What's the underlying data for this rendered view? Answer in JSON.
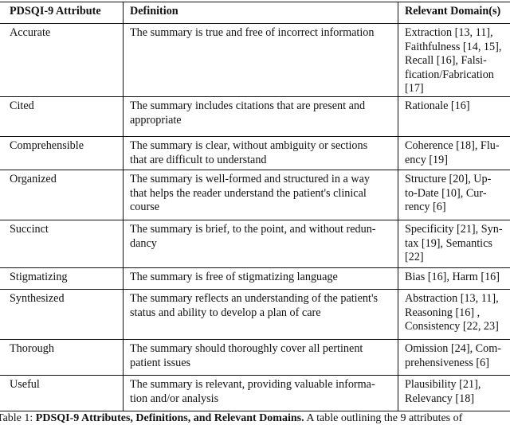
{
  "table": {
    "headers": [
      "PDSQI-9 Attribute",
      "Definition",
      "Relevant Domain(s)"
    ],
    "rows": [
      {
        "attribute": "Accurate",
        "definition": "The summary is true and free of incorrect information",
        "domains": "Extraction   [13, 11],\nFaithfulness [14, 15],\nRecall    [16],   Falsi-\nfication/Fabrication\n[17]"
      },
      {
        "attribute": "Cited",
        "definition": "The summary includes citations that are present and\nappropriate",
        "domains": "Rationale  [16]"
      },
      {
        "attribute": "Comprehensible",
        "definition": "The summary is clear, without ambiguity or sections\nthat are difficult to understand",
        "domains": "Coherence  [18], Flu-\nency  [19]"
      },
      {
        "attribute": "Organized",
        "definition": "The summary is well-formed and structured in a way\nthat helps the reader understand the patient's clinical\ncourse",
        "domains": "Structure    [20],  Up-\nto-Date    [10],   Cur-\nrency  [6]"
      },
      {
        "attribute": "Succinct",
        "definition": "The summary is brief, to the point, and without redun-\ndancy",
        "domains": "Specificity [21], Syn-\ntax  [19], Semantics\n[22]"
      },
      {
        "attribute": "Stigmatizing",
        "definition": "The summary is free of stigmatizing language",
        "domains": "Bias [16], Harm [16]"
      },
      {
        "attribute": "Synthesized",
        "definition": "The summary reflects an understanding of the patient's\nstatus and ability to develop a plan of care",
        "domains": "Abstraction  [13, 11],\nReasoning        [16]  ,\nConsistency [22, 23]"
      },
      {
        "attribute": "Thorough",
        "definition": "The summary should thoroughly cover all pertinent\npatient issues",
        "domains": "Omission [24], Com-\nprehensiveness  [6]"
      },
      {
        "attribute": "Useful",
        "definition": "The summary is relevant, providing valuable informa-\ntion and/or analysis",
        "domains": "Plausibility        [21],\nRelevancy  [18]"
      }
    ]
  },
  "caption": {
    "label": "Table 1:",
    "title": "PDSQI-9 Attributes, Definitions, and Relevant Domains.",
    "text": "A table outlining the 9 attributes of"
  }
}
